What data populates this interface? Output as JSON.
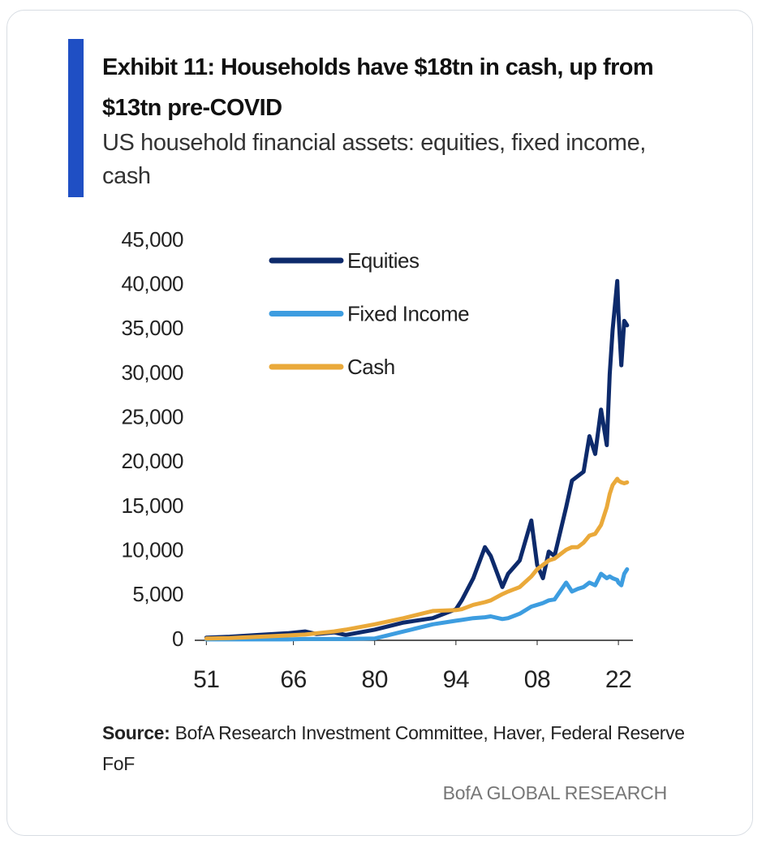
{
  "chart_data": {
    "type": "line",
    "title": "Exhibit 11: Households have $18tn in cash, up from $13tn pre-COVID",
    "subtitle": "US household financial assets: equities, fixed income, cash",
    "source_label": "Source:",
    "source": "BofA Research Investment Committee, Haver, Federal Reserve FoF",
    "branding": "BofA GLOBAL RESEARCH",
    "x": [
      1951,
      1955,
      1960,
      1965,
      1968,
      1970,
      1973,
      1975,
      1980,
      1985,
      1990,
      1994,
      1995,
      1997,
      1999,
      2000,
      2002,
      2003,
      2005,
      2007,
      2008,
      2009,
      2010,
      2011,
      2013,
      2014,
      2015,
      2016,
      2017,
      2018,
      2019,
      2020,
      2020.5,
      2021,
      2021.8,
      2022,
      2022.5,
      2023,
      2023.5
    ],
    "series": [
      {
        "name": "Equities",
        "color": "#0d2a6b",
        "values": [
          300,
          400,
          600,
          800,
          1000,
          700,
          900,
          600,
          1200,
          2000,
          2500,
          3500,
          4500,
          7000,
          10500,
          9500,
          6000,
          7500,
          9000,
          13500,
          8500,
          7000,
          10000,
          9500,
          15000,
          18000,
          18500,
          19000,
          23000,
          21000,
          26000,
          22000,
          30000,
          35000,
          40500,
          37000,
          31000,
          36000,
          35500
        ]
      },
      {
        "name": "Fixed Income",
        "color": "#3d9de0",
        "values": [
          100,
          100,
          100,
          100,
          150,
          150,
          150,
          150,
          200,
          1000,
          1800,
          2200,
          2300,
          2500,
          2600,
          2700,
          2400,
          2500,
          3000,
          3800,
          4000,
          4200,
          4500,
          4600,
          6500,
          5500,
          5800,
          6000,
          6500,
          6200,
          7500,
          7000,
          7200,
          7000,
          6800,
          6500,
          6200,
          7500,
          8000
        ]
      },
      {
        "name": "Cash",
        "color": "#eaa93a",
        "values": [
          200,
          250,
          400,
          550,
          650,
          800,
          1000,
          1200,
          1800,
          2500,
          3300,
          3400,
          3500,
          4000,
          4300,
          4500,
          5200,
          5500,
          6000,
          7200,
          8000,
          8500,
          9000,
          9200,
          10200,
          10500,
          10500,
          11000,
          11800,
          12000,
          13000,
          15000,
          16500,
          17500,
          18200,
          18000,
          17800,
          17700,
          17800
        ]
      }
    ],
    "xlim": [
      1949,
      2024.5
    ],
    "xticks": [
      {
        "value": 1951,
        "label": "51"
      },
      {
        "value": 1966,
        "label": "66"
      },
      {
        "value": 1980,
        "label": "80"
      },
      {
        "value": 1994,
        "label": "94"
      },
      {
        "value": 2008,
        "label": "08"
      },
      {
        "value": 2022,
        "label": "22"
      }
    ],
    "ylim": [
      0,
      45000
    ],
    "yticks": [
      0,
      {
        "value": 5000,
        "label": "5,000"
      },
      {
        "value": 10000,
        "label": "10,000"
      },
      {
        "value": 15000,
        "label": "15,000"
      },
      {
        "value": 20000,
        "label": "20,000"
      },
      {
        "value": 25000,
        "label": "25,000"
      },
      {
        "value": 30000,
        "label": "30,000"
      },
      {
        "value": 35000,
        "label": "35,000"
      },
      {
        "value": 40000,
        "label": "40,000"
      },
      {
        "value": 45000,
        "label": "45,000"
      }
    ],
    "grid": false,
    "legend": "upper-left"
  }
}
